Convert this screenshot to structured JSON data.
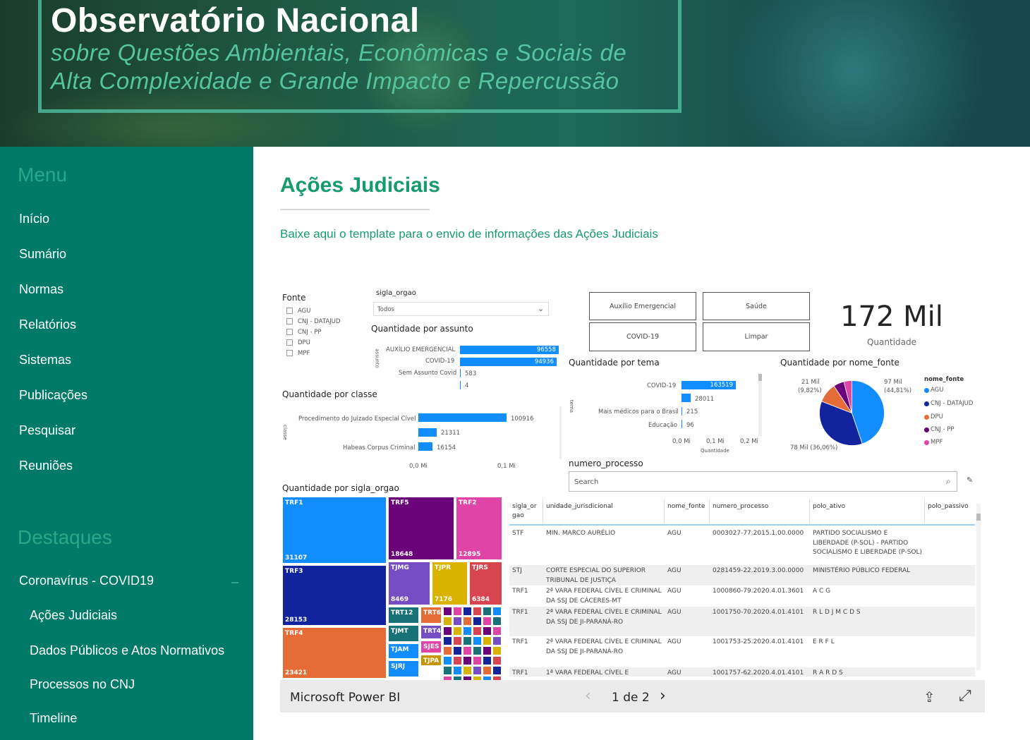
{
  "banner": {
    "title": "Observatório Nacional",
    "subtitle_line1": "sobre Questões Ambientais, Econômicas e Sociais de",
    "subtitle_line2": "Alta Complexidade e Grande Impacto e Repercussão"
  },
  "sidebar": {
    "menu_heading": "Menu",
    "menu_items": [
      "Início",
      "Sumário",
      "Normas",
      "Relatórios",
      "Sistemas",
      "Publicações",
      "Pesquisar",
      "Reuniões"
    ],
    "highlights_heading": "Destaques",
    "highlight_group": "Coronavírus - COVID19",
    "highlight_items": [
      "Ações Judiciais",
      "Dados Públicos e Atos Normativos",
      "Processos no CNJ",
      "Timeline"
    ]
  },
  "main": {
    "page_title": "Ações Judiciais",
    "template_link": "Baixe aqui o template para o envio de informações das Ações Judiciais"
  },
  "report": {
    "fonte": {
      "label": "Fonte",
      "options": [
        "AGU",
        "CNJ - DATAJUD",
        "CNJ - PP",
        "DPU",
        "MPF"
      ]
    },
    "sigla_orgao": {
      "label": "sigla_orgao",
      "selected": "Todos"
    },
    "buttons": [
      "Auxílio Emergencial",
      "Saúde",
      "COVID-19",
      "Limpar"
    ],
    "kpi": {
      "value": "172 Mil",
      "label": "Quantidade"
    },
    "por_assunto": {
      "title": "Quantidade por assunto",
      "axis": "assunto",
      "categories": [
        "AUXÍLIO EMERGENCIAL",
        "COVID-19",
        "Sem Assunto Covid",
        ""
      ],
      "labels": [
        "96558",
        "94936",
        "583",
        "4"
      ]
    },
    "por_classe": {
      "title": "Quantidade por classe",
      "axis": "classe",
      "categories": [
        "Procedimento do Juizado Especial Cível",
        "",
        "Habeas Corpus Criminal"
      ],
      "labels": [
        "100916",
        "21311",
        "16154"
      ],
      "ticks": [
        "0,0 Mi",
        "0,1 Mi"
      ]
    },
    "por_tema": {
      "title": "Quantidade por tema",
      "axis": "tema",
      "xlabel": "Quantidade",
      "categories": [
        "COVID-19",
        "",
        "Mais médicos para o Brasil",
        "Educação"
      ],
      "labels": [
        "163519",
        "28011",
        "215",
        "96"
      ],
      "ticks": [
        "0,0 Mi",
        "0,1 Mi",
        "0,2 Mi"
      ]
    },
    "por_fonte": {
      "title": "Quantidade por nome_fonte",
      "legend_title": "nome_fonte",
      "legend": [
        "AGU",
        "CNJ - DATAJUD",
        "DPU",
        "CNJ - PP",
        "MPF"
      ],
      "label_left_value": "21 Mil",
      "label_left_pct": "(9,82%)",
      "label_right_value": "97 Mil",
      "label_right_pct": "(44,81%)",
      "label_bottom": "78 Mil (36,06%)",
      "colors": [
        "#118dff",
        "#12239e",
        "#e66c37",
        "#6b007b",
        "#e044a7"
      ]
    },
    "numero_processo": {
      "label": "numero_processo",
      "placeholder": "Search"
    },
    "por_sigla": {
      "title": "Quantidade por sigla_orgao",
      "tiles": [
        {
          "n": "TRF1",
          "q": "31107"
        },
        {
          "n": "TRF5",
          "q": "18648"
        },
        {
          "n": "TRF2",
          "q": "12895"
        },
        {
          "n": "TRF3",
          "q": "28153"
        },
        {
          "n": "TJMG",
          "q": "8469"
        },
        {
          "n": "TJPR",
          "q": "7176"
        },
        {
          "n": "TJRS",
          "q": "6384"
        },
        {
          "n": "TRF4",
          "q": "23421"
        },
        {
          "n": "TRT12",
          "q": ""
        },
        {
          "n": "TRT6",
          "q": ""
        },
        {
          "n": "TRT4",
          "q": ""
        },
        {
          "n": "TJMT",
          "q": ""
        },
        {
          "n": "SJES",
          "q": ""
        },
        {
          "n": "TJAM",
          "q": ""
        },
        {
          "n": "TJPA",
          "q": ""
        },
        {
          "n": "SJRJ",
          "q": ""
        }
      ]
    },
    "table": {
      "headers": [
        "sigla_or gao",
        "unidade_jurisdicional",
        "nome_fonte",
        "numero_processo",
        "polo_ativo",
        "polo_passivo"
      ],
      "rows": [
        [
          "STF",
          "MIN. MARCO AURÉLIO",
          "AGU",
          "0003027-77.2015.1.00.0000",
          "PARTIDO SOCIALISMO E LIBERDADE (P-SOL) - PARTIDO SOCIALISMO E LIBERDADE (P-SOL)",
          ""
        ],
        [
          "STJ",
          "CORTE ESPECIAL DO SUPERIOR TRIBUNAL DE JUSTIÇA",
          "AGU",
          "0281459-22.2019.3.00.0000",
          "MINISTÉRIO PÚBLICO FEDERAL",
          ""
        ],
        [
          "TRF1",
          "2ª VARA FEDERAL CÍVEL E CRIMINAL DA SSJ DE CÁCERES-MT",
          "AGU",
          "1000860-79.2020.4.01.3601",
          "A C G",
          ""
        ],
        [
          "TRF1",
          "2ª VARA FEDERAL CÍVEL E CRIMINAL DA SSJ DE JI-PARANÁ-RO",
          "AGU",
          "1001750-70.2020.4.01.4101",
          "R L D J M C D S",
          ""
        ],
        [
          "TRF1",
          "2ª VARA FEDERAL CÍVEL E CRIMINAL DA SSJ DE JI-PARANÁ-RO",
          "AGU",
          "1001753-25.2020.4.01.4101",
          "E R F L",
          ""
        ],
        [
          "TRF1",
          "1ª VARA FEDERAL CÍVEL E",
          "AGU",
          "1001757-62.2020.4.01.4101",
          "R A R D S",
          ""
        ]
      ]
    }
  },
  "pbi_bar": {
    "brand": "Microsoft Power BI",
    "pager": "1 de 2"
  }
}
